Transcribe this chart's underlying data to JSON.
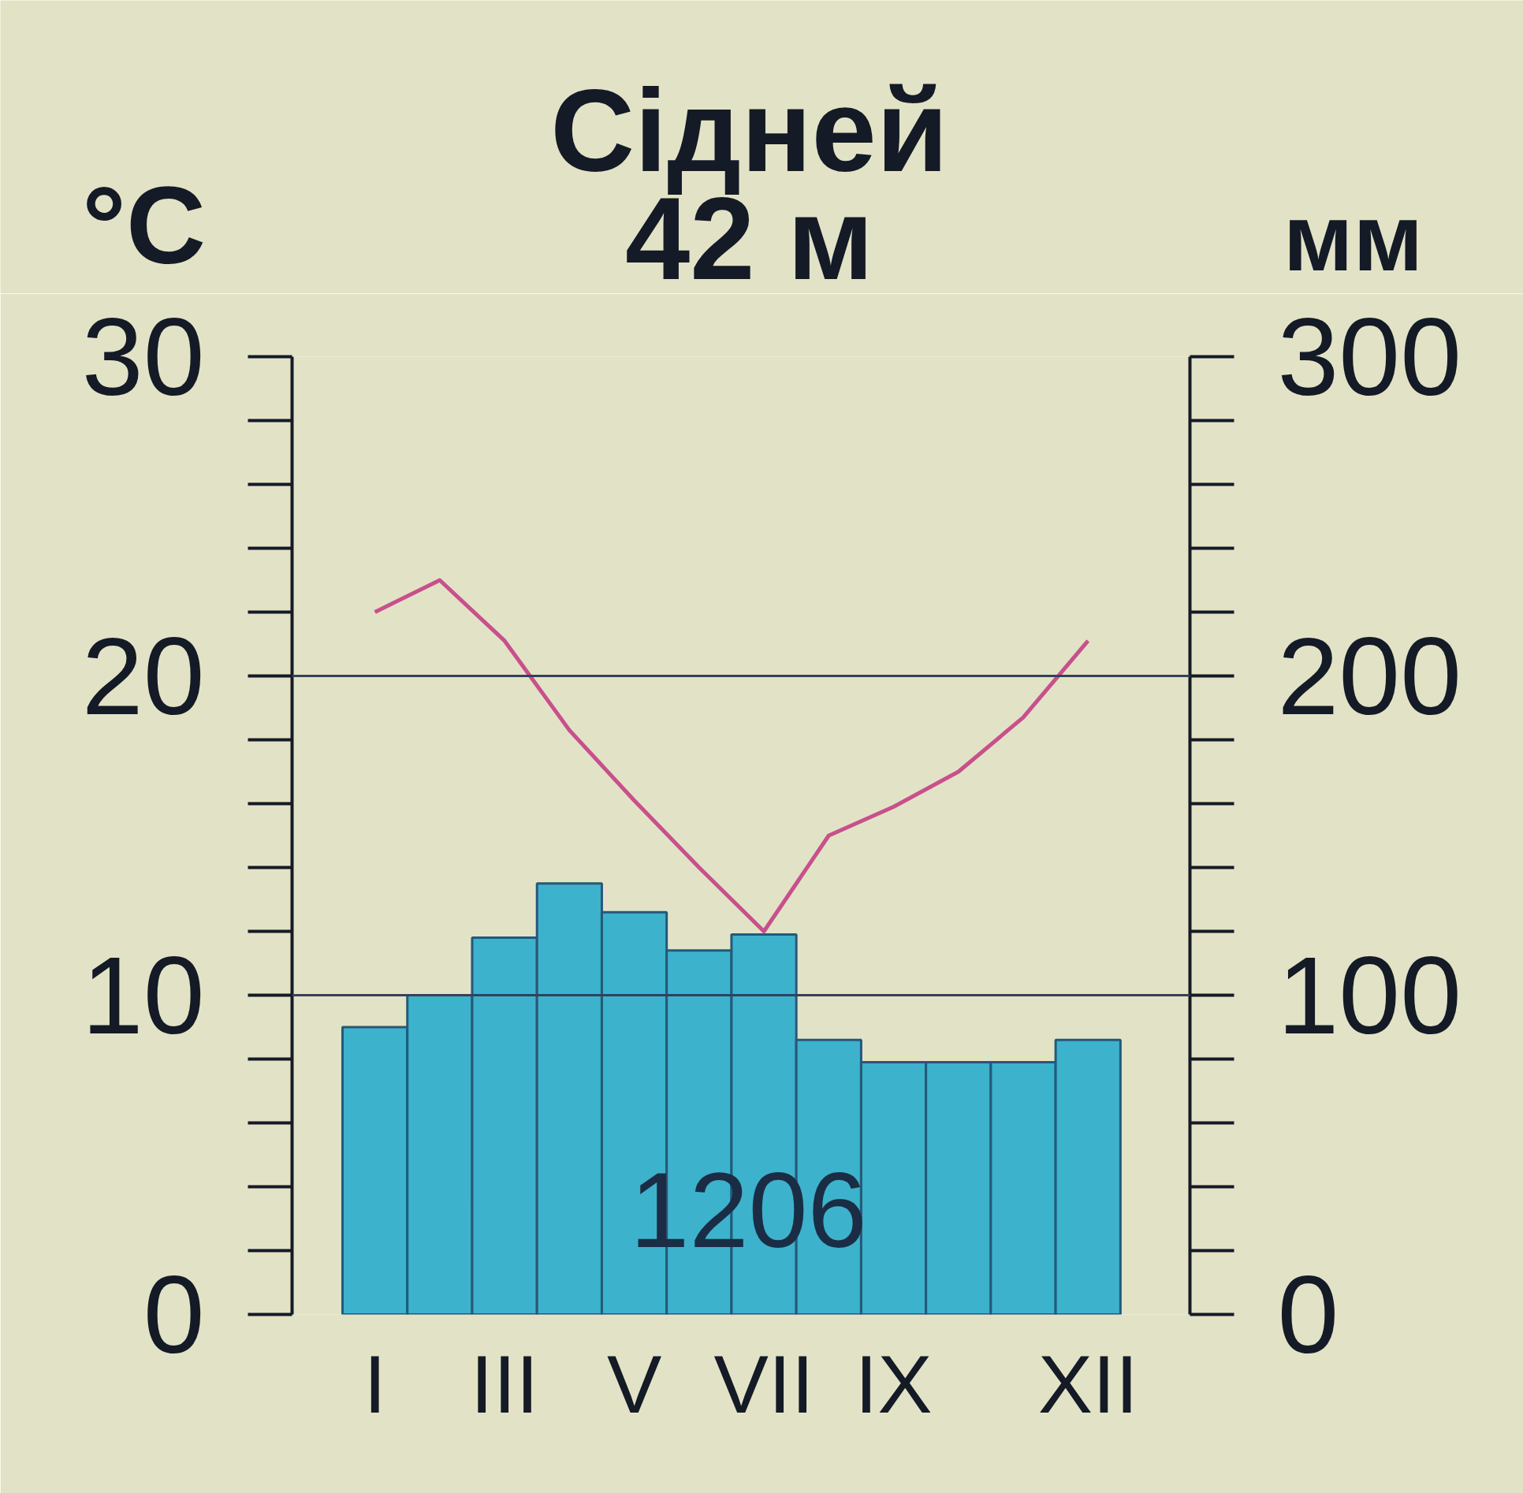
{
  "chart_data": {
    "type": "bar",
    "title": "Сідней",
    "subtitle": "42 м",
    "ylabel": "°C",
    "y2label": "мм",
    "categories": [
      "I",
      null,
      "III",
      null,
      "V",
      null,
      "VII",
      null,
      "IX",
      null,
      null,
      "XII"
    ],
    "series": [
      {
        "axis": "y2",
        "color": "#3db2cc",
        "values": [
          90,
          100,
          118,
          135,
          126,
          114,
          119,
          86,
          79,
          79,
          79,
          86
        ]
      },
      {
        "type": "line",
        "axis": "y",
        "color": "#c8508c",
        "values": [
          22.0,
          23.0,
          21.1,
          18.3,
          16.1,
          14.0,
          12.0,
          15.0,
          15.9,
          17.0,
          18.7,
          21.1
        ]
      }
    ],
    "ylim": [
      0,
      30
    ],
    "yticks": [
      0,
      10,
      20,
      30
    ],
    "y2lim": [
      0,
      300
    ],
    "y2ticks": [
      0,
      100,
      200,
      300
    ],
    "annotations": [
      "1206"
    ],
    "ref_lines": [
      {
        "axis": "y",
        "value": 10,
        "color": "#34415a"
      },
      {
        "axis": "y",
        "value": 20,
        "color": "#34415a"
      }
    ],
    "line_style": "solid"
  }
}
